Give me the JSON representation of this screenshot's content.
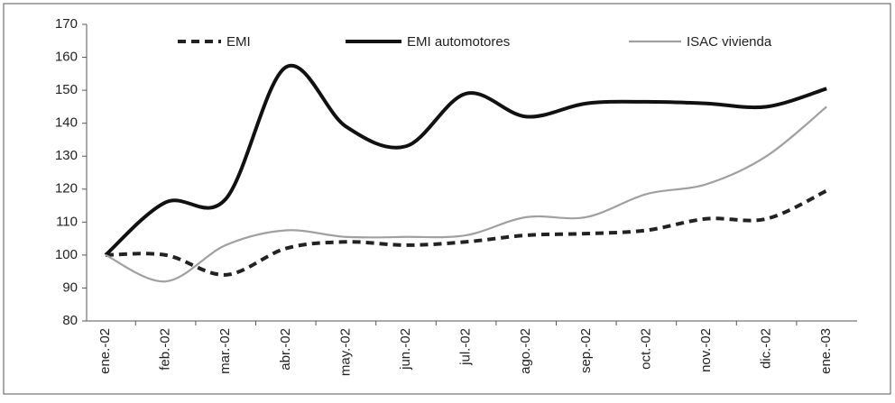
{
  "chart_data": {
    "type": "line",
    "categories": [
      "ene.-02",
      "feb.-02",
      "mar.-02",
      "abr.-02",
      "may.-02",
      "jun.-02",
      "jul.-02",
      "ago.-02",
      "sep.-02",
      "oct.-02",
      "nov.-02",
      "dic.-02",
      "ene.-03"
    ],
    "series": [
      {
        "name": "EMI",
        "color": "#222222",
        "values": [
          100,
          100,
          94,
          102,
          104,
          103,
          104,
          106,
          106.5,
          107.5,
          111,
          111,
          119.5
        ]
      },
      {
        "name": "EMI automotores",
        "color": "#111111",
        "values": [
          100,
          116,
          117,
          157,
          139,
          133,
          149,
          142,
          146,
          146.5,
          146,
          145,
          150.5
        ]
      },
      {
        "name": "ISAC vivienda",
        "color": "#a0a0a0",
        "values": [
          100,
          92,
          103,
          107.5,
          105.5,
          105.5,
          106,
          111.5,
          111.5,
          118.5,
          121.5,
          130,
          145
        ]
      }
    ],
    "ylim": [
      80,
      170
    ],
    "yticks": [
      80,
      90,
      100,
      110,
      120,
      130,
      140,
      150,
      160,
      170
    ]
  }
}
